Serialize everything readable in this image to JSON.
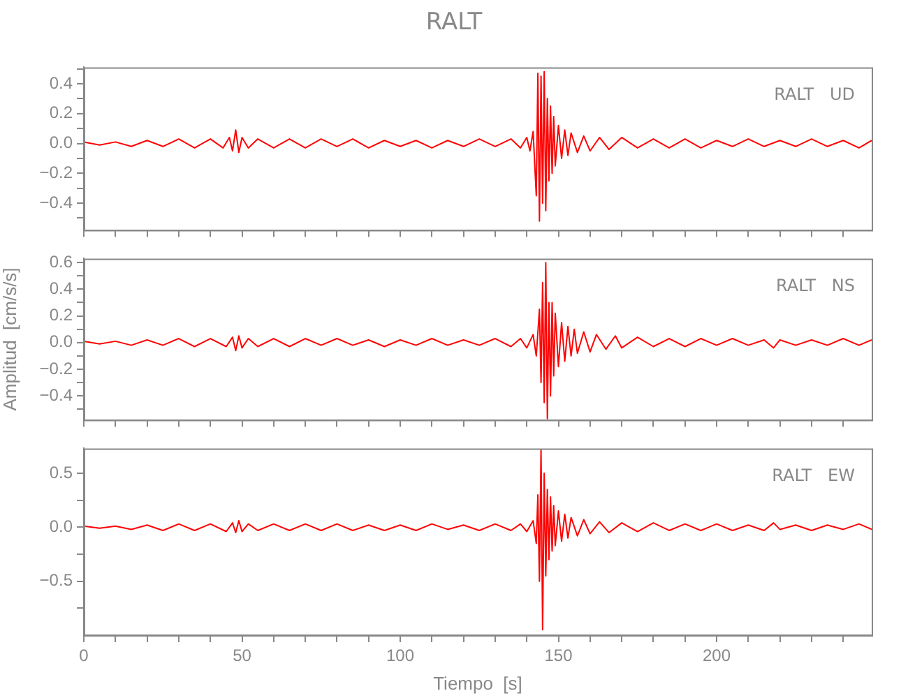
{
  "chart_data": [
    {
      "type": "line",
      "title": "RALT",
      "annotations": [
        "RALT   UD"
      ],
      "color": "#ff0000",
      "marker": "none",
      "legend": false,
      "grid": false,
      "tick_labels": "y",
      "xlim": [
        0,
        249
      ],
      "xticks": [
        0,
        {
          "value": 10,
          "label": null
        },
        {
          "value": 20,
          "label": null
        },
        {
          "value": 30,
          "label": null
        },
        {
          "value": 40,
          "label": null
        },
        50,
        {
          "value": 60,
          "label": null
        },
        {
          "value": 70,
          "label": null
        },
        {
          "value": 80,
          "label": null
        },
        {
          "value": 90,
          "label": null
        },
        100,
        {
          "value": 110,
          "label": null
        },
        {
          "value": 120,
          "label": null
        },
        {
          "value": 130,
          "label": null
        },
        {
          "value": 140,
          "label": null
        },
        150,
        {
          "value": 160,
          "label": null
        },
        {
          "value": 170,
          "label": null
        },
        {
          "value": 180,
          "label": null
        },
        {
          "value": 190,
          "label": null
        },
        200,
        {
          "value": 210,
          "label": null
        },
        {
          "value": 220,
          "label": null
        },
        {
          "value": 230,
          "label": null
        },
        {
          "value": 240,
          "label": null
        }
      ],
      "ylim": [
        -0.58,
        0.51
      ],
      "yticks": [
        {
          "value": -0.5,
          "label": null
        },
        -0.4,
        {
          "value": -0.3,
          "label": null
        },
        -0.2,
        {
          "value": -0.1,
          "label": null
        },
        {
          "value": 0,
          "label": "0.0"
        },
        {
          "value": 0.1,
          "label": null
        },
        0.2,
        {
          "value": 0.3,
          "label": null
        },
        0.4,
        {
          "value": 0.5,
          "label": null
        }
      ],
      "x": [
        0,
        5,
        10,
        15,
        20,
        25,
        30,
        35,
        40,
        44,
        46,
        47,
        48,
        49,
        50,
        52,
        55,
        60,
        65,
        70,
        75,
        80,
        85,
        90,
        95,
        100,
        105,
        110,
        115,
        120,
        125,
        130,
        135,
        138,
        140,
        141,
        142,
        143,
        143.5,
        144,
        144.5,
        145,
        145.5,
        146,
        146.5,
        147,
        147.5,
        148,
        148.5,
        149,
        150,
        151,
        152,
        153,
        154,
        156,
        158,
        160,
        163,
        166,
        170,
        175,
        180,
        185,
        190,
        195,
        200,
        205,
        210,
        215,
        220,
        225,
        230,
        235,
        240,
        245,
        249
      ],
      "values": [
        0.01,
        -0.01,
        0.01,
        -0.02,
        0.02,
        -0.02,
        0.03,
        -0.03,
        0.03,
        -0.03,
        0.04,
        -0.05,
        0.09,
        -0.06,
        0.04,
        -0.03,
        0.03,
        -0.03,
        0.03,
        -0.03,
        0.03,
        -0.02,
        0.03,
        -0.03,
        0.02,
        -0.02,
        0.02,
        -0.03,
        0.02,
        -0.02,
        0.03,
        -0.02,
        0.03,
        -0.03,
        0.04,
        -0.05,
        0.08,
        -0.35,
        0.47,
        -0.52,
        0.45,
        -0.4,
        0.48,
        -0.45,
        0.3,
        -0.25,
        0.25,
        -0.2,
        0.18,
        -0.15,
        0.12,
        -0.1,
        0.09,
        -0.08,
        0.07,
        -0.06,
        0.05,
        -0.05,
        0.04,
        -0.04,
        0.04,
        -0.03,
        0.03,
        -0.03,
        0.03,
        -0.03,
        0.02,
        -0.02,
        0.03,
        -0.02,
        0.02,
        -0.02,
        0.03,
        -0.02,
        0.02,
        -0.03,
        0.02
      ]
    },
    {
      "type": "line",
      "ylabel": "Amplitud  [cm/s/s]",
      "annotations": [
        "RALT   NS"
      ],
      "color": "#ff0000",
      "marker": "none",
      "legend": false,
      "grid": false,
      "tick_labels": "y",
      "xlim": [
        0,
        249
      ],
      "xticks": [
        0,
        {
          "value": 10,
          "label": null
        },
        {
          "value": 20,
          "label": null
        },
        {
          "value": 30,
          "label": null
        },
        {
          "value": 40,
          "label": null
        },
        50,
        {
          "value": 60,
          "label": null
        },
        {
          "value": 70,
          "label": null
        },
        {
          "value": 80,
          "label": null
        },
        {
          "value": 90,
          "label": null
        },
        100,
        {
          "value": 110,
          "label": null
        },
        {
          "value": 120,
          "label": null
        },
        {
          "value": 130,
          "label": null
        },
        {
          "value": 140,
          "label": null
        },
        150,
        {
          "value": 160,
          "label": null
        },
        {
          "value": 170,
          "label": null
        },
        {
          "value": 180,
          "label": null
        },
        {
          "value": 190,
          "label": null
        },
        200,
        {
          "value": 210,
          "label": null
        },
        {
          "value": 220,
          "label": null
        },
        {
          "value": 230,
          "label": null
        },
        {
          "value": 240,
          "label": null
        }
      ],
      "ylim": [
        -0.58,
        0.63
      ],
      "yticks": [
        {
          "value": -0.5,
          "label": null
        },
        -0.4,
        {
          "value": -0.3,
          "label": null
        },
        -0.2,
        {
          "value": -0.1,
          "label": null
        },
        {
          "value": 0,
          "label": "0.0"
        },
        {
          "value": 0.1,
          "label": null
        },
        0.2,
        {
          "value": 0.3,
          "label": null
        },
        0.4,
        {
          "value": 0.5,
          "label": null
        },
        0.6
      ],
      "x": [
        0,
        5,
        10,
        15,
        20,
        25,
        30,
        35,
        40,
        45,
        47,
        48,
        49,
        50,
        52,
        55,
        60,
        65,
        70,
        75,
        80,
        85,
        90,
        95,
        100,
        105,
        110,
        115,
        120,
        125,
        130,
        135,
        138,
        140,
        142,
        143,
        144,
        144.5,
        145,
        145.5,
        146,
        146.5,
        147,
        147.5,
        148,
        148.5,
        149,
        150,
        151,
        152,
        153,
        154,
        155,
        156,
        158,
        160,
        162,
        165,
        168,
        170,
        175,
        180,
        185,
        190,
        195,
        200,
        205,
        210,
        215,
        218,
        220,
        225,
        230,
        235,
        240,
        245,
        249
      ],
      "values": [
        0.01,
        -0.01,
        0.01,
        -0.02,
        0.02,
        -0.02,
        0.03,
        -0.03,
        0.03,
        -0.03,
        0.04,
        -0.06,
        0.05,
        -0.04,
        0.03,
        -0.03,
        0.03,
        -0.03,
        0.03,
        -0.02,
        0.03,
        -0.02,
        0.02,
        -0.03,
        0.02,
        -0.02,
        0.03,
        -0.02,
        0.02,
        -0.02,
        0.03,
        -0.03,
        0.03,
        -0.04,
        0.06,
        -0.1,
        0.25,
        -0.3,
        0.45,
        -0.45,
        0.6,
        -0.57,
        0.3,
        -0.4,
        0.3,
        -0.25,
        0.22,
        -0.18,
        0.15,
        -0.14,
        0.12,
        -0.1,
        0.1,
        -0.08,
        0.08,
        -0.07,
        0.06,
        -0.05,
        0.05,
        -0.04,
        0.04,
        -0.03,
        0.03,
        -0.03,
        0.03,
        -0.02,
        0.03,
        -0.02,
        0.02,
        -0.04,
        0.02,
        -0.02,
        0.02,
        -0.02,
        0.03,
        -0.02,
        0.02
      ]
    },
    {
      "type": "line",
      "xlabel": "Tiempo  [s]",
      "annotations": [
        "RALT   EW"
      ],
      "color": "#ff0000",
      "marker": "none",
      "legend": false,
      "grid": false,
      "xlim": [
        0,
        249
      ],
      "xticks": [
        0,
        {
          "value": 10,
          "label": null
        },
        {
          "value": 20,
          "label": null
        },
        {
          "value": 30,
          "label": null
        },
        {
          "value": 40,
          "label": null
        },
        50,
        {
          "value": 60,
          "label": null
        },
        {
          "value": 70,
          "label": null
        },
        {
          "value": 80,
          "label": null
        },
        {
          "value": 90,
          "label": null
        },
        100,
        {
          "value": 110,
          "label": null
        },
        {
          "value": 120,
          "label": null
        },
        {
          "value": 130,
          "label": null
        },
        {
          "value": 140,
          "label": null
        },
        150,
        {
          "value": 160,
          "label": null
        },
        {
          "value": 170,
          "label": null
        },
        {
          "value": 180,
          "label": null
        },
        {
          "value": 190,
          "label": null
        },
        200,
        {
          "value": 210,
          "label": null
        },
        {
          "value": 220,
          "label": null
        },
        {
          "value": 230,
          "label": null
        },
        {
          "value": 240,
          "label": null
        }
      ],
      "ylim": [
        -1.0,
        0.73
      ],
      "yticks": [
        {
          "value": -0.75,
          "label": null
        },
        -0.5,
        {
          "value": -0.25,
          "label": null
        },
        {
          "value": 0,
          "label": "0.0"
        },
        {
          "value": 0.25,
          "label": null
        },
        0.5
      ],
      "x": [
        0,
        5,
        10,
        15,
        20,
        25,
        30,
        35,
        40,
        45,
        47,
        48,
        49,
        50,
        52,
        55,
        60,
        65,
        70,
        75,
        80,
        85,
        90,
        95,
        100,
        105,
        110,
        115,
        120,
        125,
        130,
        135,
        138,
        140,
        142,
        143,
        143.5,
        144,
        144.5,
        145,
        145.5,
        146,
        146.5,
        147,
        147.5,
        148,
        148.5,
        149,
        150,
        151,
        152,
        153,
        154,
        156,
        158,
        160,
        163,
        166,
        170,
        175,
        180,
        185,
        190,
        195,
        200,
        205,
        210,
        215,
        218,
        220,
        225,
        230,
        235,
        240,
        245,
        249
      ],
      "values": [
        0.01,
        -0.01,
        0.01,
        -0.02,
        0.02,
        -0.03,
        0.03,
        -0.03,
        0.03,
        -0.04,
        0.04,
        -0.05,
        0.06,
        -0.04,
        0.03,
        -0.03,
        0.03,
        -0.03,
        0.03,
        -0.03,
        0.03,
        -0.03,
        0.02,
        -0.03,
        0.02,
        -0.03,
        0.03,
        -0.02,
        0.02,
        -0.03,
        0.03,
        -0.03,
        0.03,
        -0.04,
        0.06,
        -0.15,
        0.3,
        -0.5,
        0.72,
        -0.95,
        0.5,
        -0.45,
        0.35,
        -0.3,
        0.28,
        -0.22,
        0.2,
        -0.17,
        0.15,
        -0.13,
        0.12,
        -0.1,
        0.09,
        -0.08,
        0.07,
        -0.06,
        0.05,
        -0.05,
        0.04,
        -0.04,
        0.04,
        -0.03,
        0.03,
        -0.03,
        0.03,
        -0.03,
        0.02,
        -0.03,
        0.04,
        -0.02,
        0.02,
        -0.03,
        0.02,
        -0.02,
        0.03,
        -0.02
      ]
    }
  ]
}
